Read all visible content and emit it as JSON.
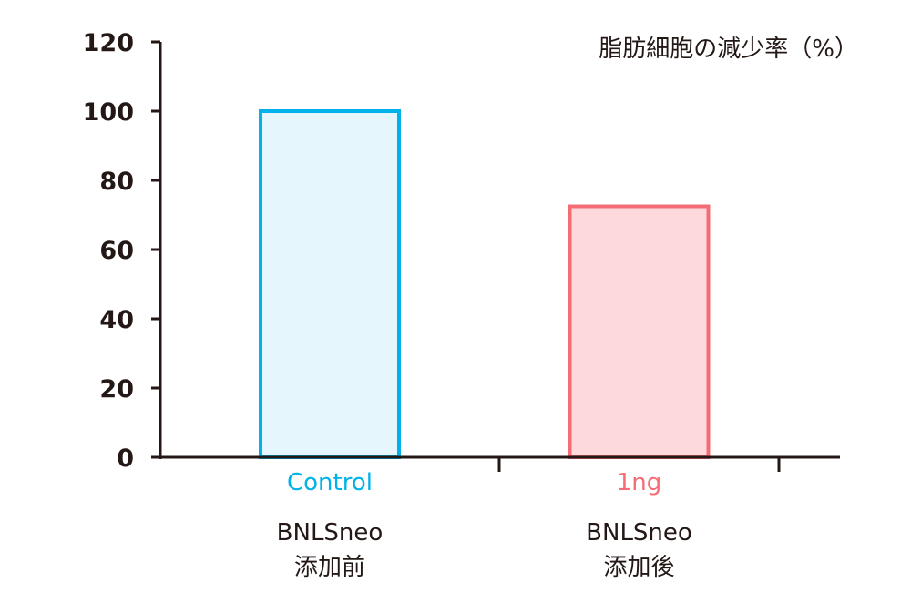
{
  "chart_data": {
    "type": "bar",
    "title": "脂肪細胞の減少率（%）",
    "ylim": [
      0,
      120
    ],
    "yticks": [
      0,
      20,
      40,
      60,
      80,
      100,
      120
    ],
    "grid": false,
    "legend": "none",
    "categories": [
      "Control",
      "1ng"
    ],
    "group_labels": [
      [
        "BNLSneo",
        "添加前"
      ],
      [
        "BNLSneo",
        "添加後"
      ]
    ],
    "values": [
      100,
      72.5
    ],
    "colors": {
      "axis": "#231815",
      "bar_strokes": [
        "#00b2e9",
        "#f46d75"
      ],
      "bar_fills": [
        "#e5f6fc",
        "#fdd9db"
      ]
    }
  }
}
